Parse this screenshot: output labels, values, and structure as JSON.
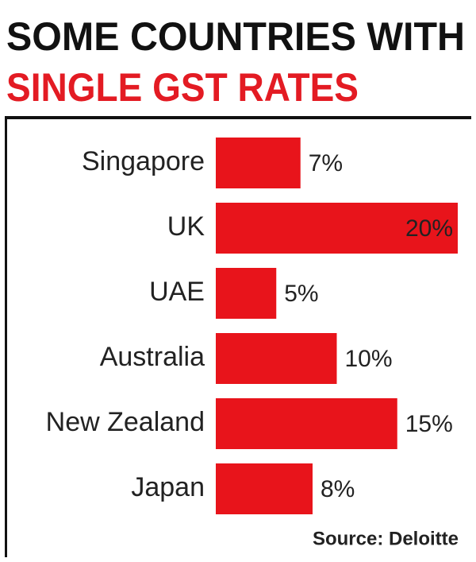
{
  "chart_data": {
    "type": "bar",
    "orientation": "horizontal",
    "title": [
      "SOME COUNTRIES WITH",
      "SINGLE GST RATES"
    ],
    "title_colors": [
      "#111111",
      "#e31b23"
    ],
    "categories": [
      "Singapore",
      "UK",
      "UAE",
      "Australia",
      "New Zealand",
      "Japan"
    ],
    "values": [
      7,
      20,
      5,
      10,
      15,
      8
    ],
    "value_labels": [
      "7%",
      "20%",
      "5%",
      "10%",
      "15%",
      "8%"
    ],
    "color": "#e8141b",
    "source": "Source: Deloitte"
  }
}
